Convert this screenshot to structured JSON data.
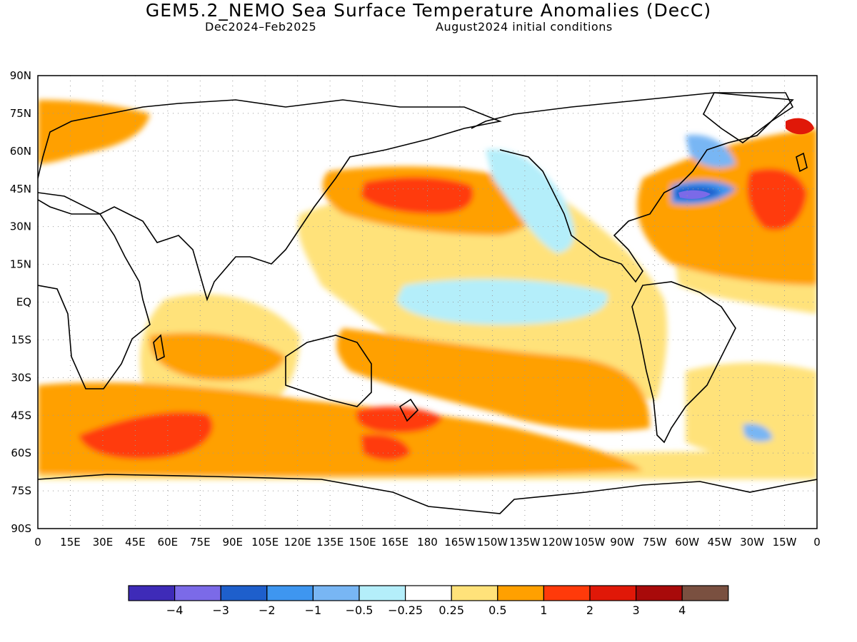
{
  "title": "GEM5.2_NEMO Sea Surface Temperature Anomalies (DecC)",
  "subtitle_left": "Dec2024–Feb2025",
  "subtitle_right": "August2024 initial conditions",
  "map": {
    "lat_ticks": [
      "90N",
      "75N",
      "60N",
      "45N",
      "30N",
      "15N",
      "EQ",
      "15S",
      "30S",
      "45S",
      "60S",
      "75S",
      "90S"
    ],
    "lon_ticks": [
      "0",
      "15E",
      "30E",
      "45E",
      "60E",
      "75E",
      "90E",
      "105E",
      "120E",
      "135E",
      "150E",
      "165E",
      "180",
      "165W",
      "150W",
      "135W",
      "120W",
      "105W",
      "90W",
      "75W",
      "60W",
      "45W",
      "30W",
      "15W",
      "0"
    ]
  },
  "legend": {
    "colors": [
      "#3e2bb8",
      "#7b6ae8",
      "#1e5fcc",
      "#3e96f0",
      "#78b6f4",
      "#b4eefa",
      "#ffffff",
      "#ffe27a",
      "#ffa000",
      "#ff3a0a",
      "#e01808",
      "#a80a0a",
      "#7a5040"
    ],
    "labels": [
      "−4",
      "−3",
      "−2",
      "−1",
      "−0.5",
      "−0.25",
      "0.25",
      "0.5",
      "1",
      "2",
      "3",
      "4"
    ]
  },
  "colors": {
    "land_outline": "#000000",
    "grid": "#9a9a9a"
  }
}
